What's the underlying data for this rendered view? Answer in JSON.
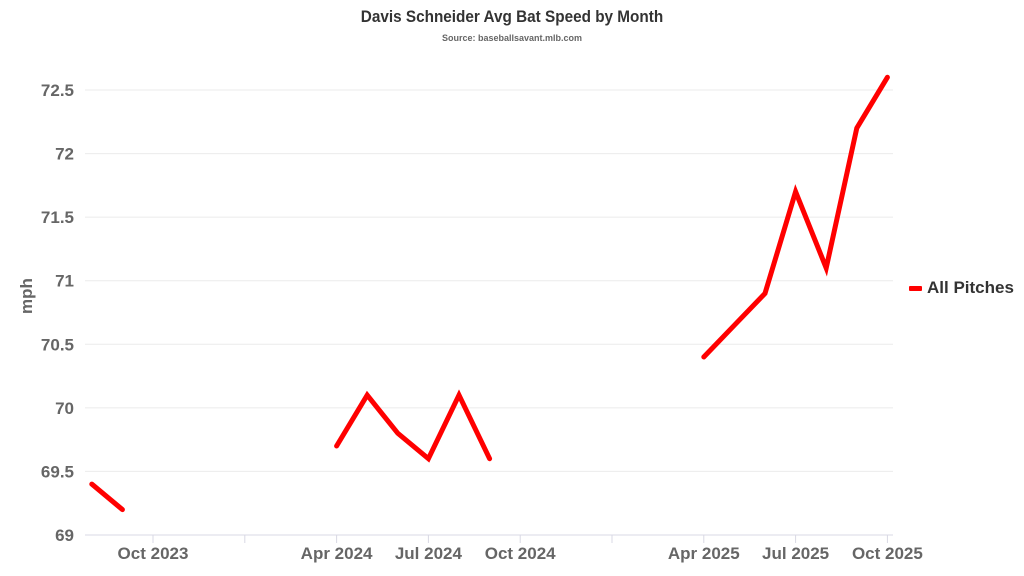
{
  "chart_data": {
    "type": "line",
    "title": "Davis Schneider Avg Bat Speed by Month",
    "subtitle": "Source: baseballsavant.mlb.com",
    "xlabel": "",
    "ylabel": "mph",
    "ylim": [
      69,
      72.5
    ],
    "yticks": [
      "69",
      "69.5",
      "70",
      "70.5",
      "71",
      "71.5",
      "72",
      "72.5"
    ],
    "xticks": [
      "Oct 2023",
      "",
      "Apr 2024",
      "Jul 2024",
      "Oct 2024",
      "",
      "Apr 2025",
      "Jul 2025",
      "Oct 2025"
    ],
    "grid": true,
    "legend_position": "right",
    "series": [
      {
        "name": "All Pitches",
        "color": "#ff0000",
        "points": [
          {
            "x": "2023-08",
            "y": 69.4
          },
          {
            "x": "2023-09",
            "y": 69.2
          },
          {
            "x": "2024-04",
            "y": 69.7
          },
          {
            "x": "2024-05",
            "y": 70.1
          },
          {
            "x": "2024-06",
            "y": 69.8
          },
          {
            "x": "2024-07",
            "y": 69.6
          },
          {
            "x": "2024-08",
            "y": 70.1
          },
          {
            "x": "2024-09",
            "y": 69.6
          },
          {
            "x": "2025-04",
            "y": 70.4
          },
          {
            "x": "2025-05",
            "y": 70.65
          },
          {
            "x": "2025-06",
            "y": 70.9
          },
          {
            "x": "2025-07",
            "y": 71.7
          },
          {
            "x": "2025-08",
            "y": 71.1
          },
          {
            "x": "2025-09",
            "y": 72.2
          },
          {
            "x": "2025-10",
            "y": 72.6
          }
        ]
      }
    ]
  }
}
